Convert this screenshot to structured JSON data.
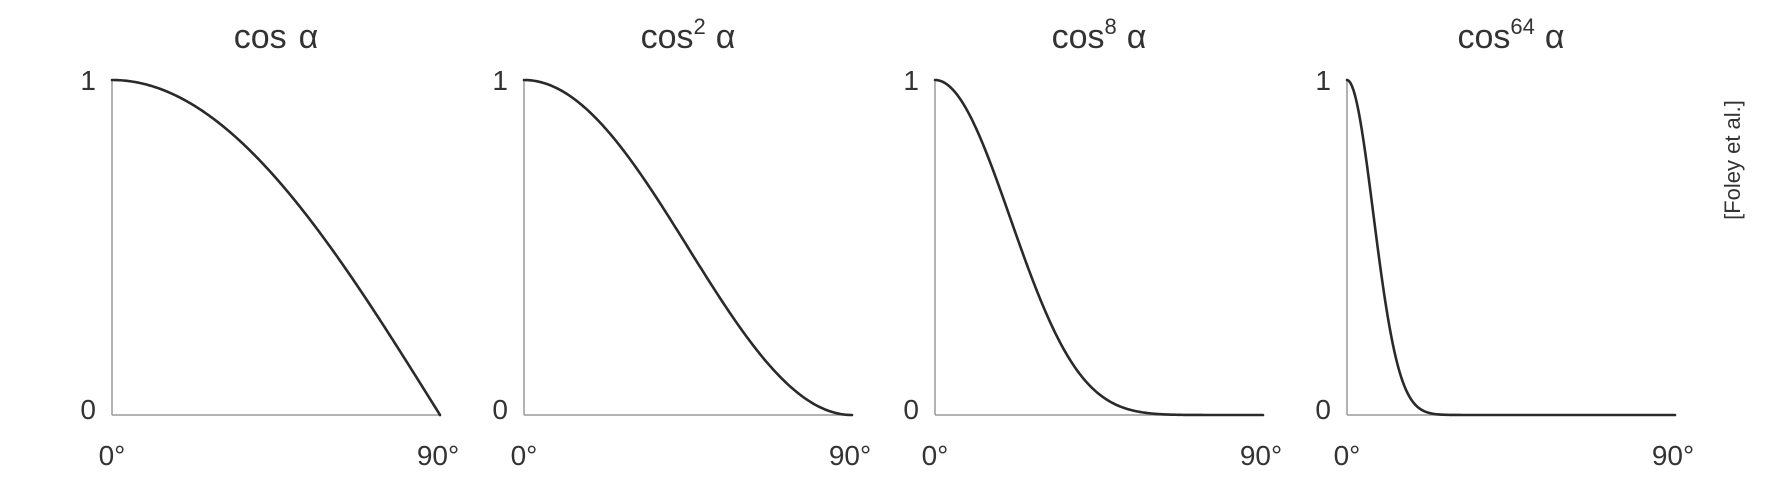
{
  "figure": {
    "credit": "[Foley et al.]"
  },
  "chart_data": [
    {
      "type": "line",
      "title": "cos α",
      "title_base": "cos",
      "title_exponent": "",
      "title_symbol": "α",
      "xlabel": "",
      "ylabel": "",
      "xlim": [
        0,
        90
      ],
      "ylim": [
        0,
        1
      ],
      "x_ticks": [
        "0°",
        "90°"
      ],
      "y_ticks": [
        "0",
        "1"
      ],
      "grid": false,
      "exponent": 1,
      "series": [
        {
          "x": [
            0,
            5,
            10,
            15,
            20,
            25,
            30,
            35,
            40,
            45,
            50,
            55,
            60,
            65,
            70,
            75,
            80,
            85,
            90
          ],
          "y": [
            1,
            0.996,
            0.985,
            0.966,
            0.94,
            0.906,
            0.866,
            0.819,
            0.766,
            0.707,
            0.643,
            0.574,
            0.5,
            0.423,
            0.342,
            0.259,
            0.174,
            0.087,
            0
          ]
        }
      ]
    },
    {
      "type": "line",
      "title": "cos² α",
      "title_base": "cos",
      "title_exponent": "2",
      "title_symbol": "α",
      "xlabel": "",
      "ylabel": "",
      "xlim": [
        0,
        90
      ],
      "ylim": [
        0,
        1
      ],
      "x_ticks": [
        "0°",
        "90°"
      ],
      "y_ticks": [
        "0",
        "1"
      ],
      "grid": false,
      "exponent": 2,
      "series": [
        {
          "x": [
            0,
            5,
            10,
            15,
            20,
            25,
            30,
            35,
            40,
            45,
            50,
            55,
            60,
            65,
            70,
            75,
            80,
            85,
            90
          ],
          "y": [
            1,
            0.992,
            0.97,
            0.933,
            0.883,
            0.821,
            0.75,
            0.671,
            0.587,
            0.5,
            0.413,
            0.329,
            0.25,
            0.179,
            0.117,
            0.067,
            0.03,
            0.008,
            0
          ]
        }
      ]
    },
    {
      "type": "line",
      "title": "cos⁸ α",
      "title_base": "cos",
      "title_exponent": "8",
      "title_symbol": "α",
      "xlabel": "",
      "ylabel": "",
      "xlim": [
        0,
        90
      ],
      "ylim": [
        0,
        1
      ],
      "x_ticks": [
        "0°",
        "90°"
      ],
      "y_ticks": [
        "0",
        "1"
      ],
      "grid": false,
      "exponent": 8,
      "series": [
        {
          "x": [
            0,
            5,
            10,
            15,
            20,
            25,
            30,
            35,
            40,
            45,
            50,
            55,
            60,
            65,
            70,
            75,
            80,
            85,
            90
          ],
          "y": [
            1,
            0.97,
            0.885,
            0.758,
            0.607,
            0.454,
            0.316,
            0.203,
            0.119,
            0.063,
            0.029,
            0.012,
            0.004,
            0.001,
            0,
            0,
            0,
            0,
            0
          ]
        }
      ]
    },
    {
      "type": "line",
      "title": "cos⁶⁴ α",
      "title_base": "cos",
      "title_exponent": "64",
      "title_symbol": "α",
      "xlabel": "",
      "ylabel": "",
      "xlim": [
        0,
        90
      ],
      "ylim": [
        0,
        1
      ],
      "x_ticks": [
        "0°",
        "90°"
      ],
      "y_ticks": [
        "0",
        "1"
      ],
      "grid": false,
      "exponent": 64,
      "series": [
        {
          "x": [
            0,
            2,
            4,
            6,
            8,
            10,
            12,
            14,
            16,
            18,
            20,
            25,
            30,
            40,
            50,
            60,
            70,
            80,
            90
          ],
          "y": [
            1,
            0.962,
            0.856,
            0.705,
            0.537,
            0.377,
            0.244,
            0.145,
            0.079,
            0.039,
            0.018,
            0.002,
            0,
            0,
            0,
            0,
            0,
            0,
            0
          ]
        }
      ]
    }
  ]
}
